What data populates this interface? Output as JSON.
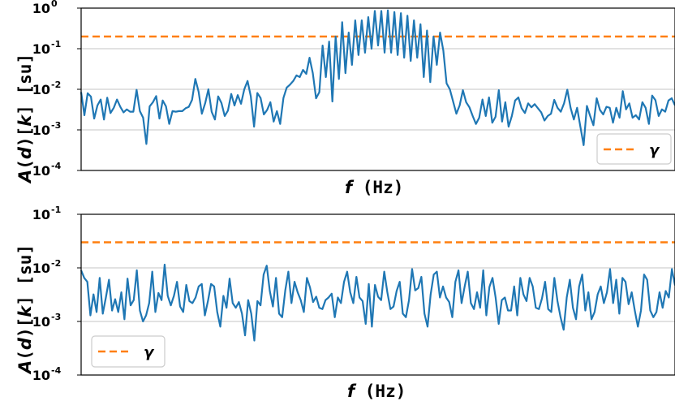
{
  "chart_data": [
    {
      "type": "line",
      "yscale": "log",
      "ylim": [
        0.0001,
        1
      ],
      "yticks": [
        {
          "value": 1,
          "base": "10",
          "exp": "0"
        },
        {
          "value": 0.1,
          "base": "10",
          "exp": "-1"
        },
        {
          "value": 0.01,
          "base": "10",
          "exp": "-2"
        },
        {
          "value": 0.001,
          "base": "10",
          "exp": "-3"
        },
        {
          "value": 0.0001,
          "base": "10",
          "exp": "-4"
        }
      ],
      "xlabel": {
        "italic": "f",
        "rest": " (Hz)"
      },
      "ylabel": {
        "italic_a": "A",
        "open": "(",
        "italic_d": "d",
        "close": ")[",
        "italic_k": "k",
        "tail": "] [su]"
      },
      "grid": true,
      "legend": "bottom-right",
      "series": [
        {
          "name": "",
          "color": "#1f77b4",
          "values": [
            0.0085,
            0.0023,
            0.008,
            0.0066,
            0.0019,
            0.004,
            0.0056,
            0.0018,
            0.0062,
            0.0026,
            0.0035,
            0.0056,
            0.0037,
            0.0027,
            0.0032,
            0.0028,
            0.0028,
            0.0097,
            0.0029,
            0.002,
            0.00045,
            0.0038,
            0.0048,
            0.0068,
            0.0019,
            0.0053,
            0.0038,
            0.0014,
            0.0029,
            0.0028,
            0.0029,
            0.0029,
            0.0034,
            0.0037,
            0.0055,
            0.018,
            0.0087,
            0.0025,
            0.0045,
            0.01,
            0.0028,
            0.0018,
            0.0067,
            0.0046,
            0.0022,
            0.003,
            0.0077,
            0.004,
            0.0072,
            0.0044,
            0.01,
            0.016,
            0.0067,
            0.0012,
            0.0081,
            0.0061,
            0.0024,
            0.0031,
            0.0048,
            0.0016,
            0.0029,
            0.0014,
            0.0061,
            0.011,
            0.013,
            0.016,
            0.022,
            0.02,
            0.03,
            0.024,
            0.06,
            0.025,
            0.006,
            0.0085,
            0.12,
            0.02,
            0.15,
            0.005,
            0.2,
            0.018,
            0.45,
            0.025,
            0.25,
            0.04,
            0.5,
            0.07,
            0.5,
            0.08,
            0.6,
            0.1,
            0.85,
            0.12,
            0.85,
            0.08,
            0.88,
            0.08,
            0.8,
            0.07,
            0.75,
            0.06,
            0.65,
            0.05,
            0.5,
            0.06,
            0.4,
            0.02,
            0.28,
            0.015,
            0.2,
            0.04,
            0.25,
            0.09,
            0.014,
            0.01,
            0.005,
            0.0025,
            0.004,
            0.0095,
            0.0048,
            0.0036,
            0.0022,
            0.0014,
            0.002,
            0.0056,
            0.0022,
            0.0063,
            0.0015,
            0.0021,
            0.0095,
            0.0016,
            0.0048,
            0.0012,
            0.0022,
            0.0053,
            0.0063,
            0.0034,
            0.0026,
            0.0045,
            0.0036,
            0.0043,
            0.0034,
            0.0027,
            0.0017,
            0.0022,
            0.0025,
            0.0055,
            0.0035,
            0.0028,
            0.0045,
            0.0098,
            0.0035,
            0.0018,
            0.0035,
            0.0012,
            0.00042,
            0.0039,
            0.0022,
            0.0013,
            0.006,
            0.0031,
            0.0024,
            0.0037,
            0.0035,
            0.0015,
            0.0035,
            0.002,
            0.009,
            0.0032,
            0.0045,
            0.002,
            0.0023,
            0.0018,
            0.0048,
            0.0035,
            0.0014,
            0.007,
            0.0054,
            0.0022,
            0.0032,
            0.0028,
            0.0053,
            0.006,
            0.004
          ]
        },
        {
          "name": "γ",
          "color": "#ff7f0e",
          "dashed": true,
          "values": [
            0.2
          ]
        }
      ]
    },
    {
      "type": "line",
      "yscale": "log",
      "ylim": [
        0.0001,
        0.1
      ],
      "yticks": [
        {
          "value": 0.1,
          "base": "10",
          "exp": "-1"
        },
        {
          "value": 0.01,
          "base": "10",
          "exp": "-2"
        },
        {
          "value": 0.001,
          "base": "10",
          "exp": "-3"
        },
        {
          "value": 0.0001,
          "base": "10",
          "exp": "-4"
        }
      ],
      "xlabel": {
        "italic": "f",
        "rest": " (Hz)"
      },
      "ylabel": {
        "italic_a": "A",
        "open": "(",
        "italic_d": "d",
        "close": ")[",
        "italic_k": "k",
        "tail": "] [su]"
      },
      "grid": true,
      "legend": "bottom-left",
      "series": [
        {
          "name": "",
          "color": "#1f77b4",
          "values": [
            0.009,
            0.0065,
            0.0055,
            0.0013,
            0.0032,
            0.0015,
            0.0065,
            0.0014,
            0.0028,
            0.006,
            0.0016,
            0.0026,
            0.0015,
            0.0035,
            0.0011,
            0.0063,
            0.002,
            0.0025,
            0.009,
            0.0016,
            0.001,
            0.0013,
            0.0022,
            0.0085,
            0.0015,
            0.0034,
            0.0025,
            0.0115,
            0.003,
            0.002,
            0.003,
            0.0055,
            0.0019,
            0.0015,
            0.0048,
            0.0024,
            0.0022,
            0.0028,
            0.0045,
            0.005,
            0.0013,
            0.0024,
            0.005,
            0.0045,
            0.0015,
            0.0008,
            0.003,
            0.0018,
            0.0063,
            0.0022,
            0.0018,
            0.0023,
            0.0014,
            0.00055,
            0.0025,
            0.0014,
            0.00044,
            0.0024,
            0.002,
            0.0075,
            0.011,
            0.0037,
            0.0019,
            0.0065,
            0.0014,
            0.0012,
            0.0038,
            0.0085,
            0.0022,
            0.0055,
            0.0035,
            0.0025,
            0.0015,
            0.0065,
            0.0043,
            0.0023,
            0.0029,
            0.0018,
            0.0017,
            0.0025,
            0.0028,
            0.0033,
            0.0012,
            0.0028,
            0.0022,
            0.0055,
            0.0085,
            0.0035,
            0.0022,
            0.0068,
            0.0028,
            0.0024,
            0.0009,
            0.005,
            0.0008,
            0.0048,
            0.0029,
            0.0025,
            0.0085,
            0.0035,
            0.0017,
            0.0019,
            0.0037,
            0.0055,
            0.0014,
            0.0012,
            0.0025,
            0.0095,
            0.0038,
            0.0042,
            0.0068,
            0.0014,
            0.0008,
            0.0032,
            0.0075,
            0.0085,
            0.0028,
            0.0045,
            0.0028,
            0.0023,
            0.0012,
            0.0055,
            0.009,
            0.0022,
            0.0045,
            0.0085,
            0.0022,
            0.0017,
            0.0035,
            0.0018,
            0.009,
            0.0013,
            0.0044,
            0.0065,
            0.0028,
            0.0009,
            0.0025,
            0.0028,
            0.0016,
            0.0016,
            0.0045,
            0.0013,
            0.0065,
            0.0032,
            0.0024,
            0.0065,
            0.0045,
            0.0018,
            0.0017,
            0.0027,
            0.0055,
            0.0017,
            0.0015,
            0.0065,
            0.0024,
            0.0012,
            0.0007,
            0.0028,
            0.006,
            0.0018,
            0.0011,
            0.0045,
            0.0075,
            0.0016,
            0.0035,
            0.0011,
            0.0015,
            0.0032,
            0.0045,
            0.0022,
            0.0035,
            0.0095,
            0.0022,
            0.006,
            0.0014,
            0.0065,
            0.0055,
            0.0021,
            0.0035,
            0.0016,
            0.0008,
            0.0016,
            0.0075,
            0.006,
            0.0016,
            0.0012,
            0.0015,
            0.0035,
            0.0018,
            0.0037,
            0.0028,
            0.0095,
            0.0047
          ]
        },
        {
          "name": "γ",
          "color": "#ff7f0e",
          "dashed": true,
          "values": [
            0.03
          ]
        }
      ]
    }
  ]
}
